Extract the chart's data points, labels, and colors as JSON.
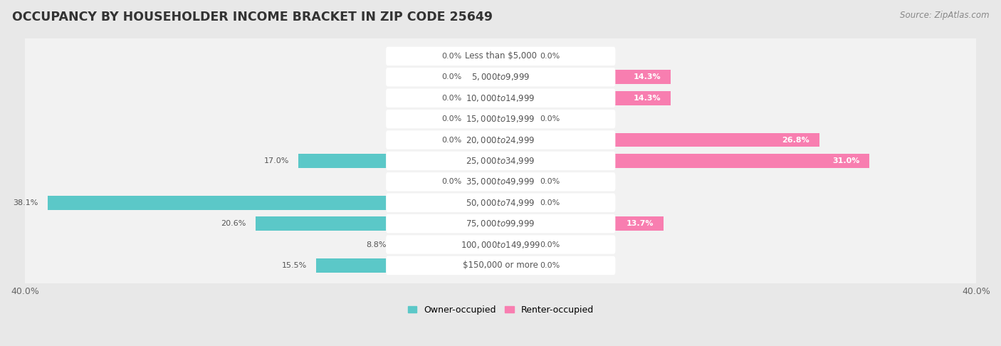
{
  "title": "OCCUPANCY BY HOUSEHOLDER INCOME BRACKET IN ZIP CODE 25649",
  "source": "Source: ZipAtlas.com",
  "categories": [
    "Less than $5,000",
    "$5,000 to $9,999",
    "$10,000 to $14,999",
    "$15,000 to $19,999",
    "$20,000 to $24,999",
    "$25,000 to $34,999",
    "$35,000 to $49,999",
    "$50,000 to $74,999",
    "$75,000 to $99,999",
    "$100,000 to $149,999",
    "$150,000 or more"
  ],
  "owner_values": [
    0.0,
    0.0,
    0.0,
    0.0,
    0.0,
    17.0,
    0.0,
    38.1,
    20.6,
    8.8,
    15.5
  ],
  "renter_values": [
    0.0,
    14.3,
    14.3,
    0.0,
    26.8,
    31.0,
    0.0,
    0.0,
    13.7,
    0.0,
    0.0
  ],
  "owner_color": "#5BC8C8",
  "renter_color": "#F87EB0",
  "renter_color_light": "#FBCFE0",
  "background_color": "#e8e8e8",
  "row_bg_color": "#f2f2f2",
  "label_pill_color": "#ffffff",
  "xlim": 40.0,
  "title_fontsize": 12.5,
  "source_fontsize": 8.5,
  "label_fontsize": 8.0,
  "category_fontsize": 8.5,
  "legend_fontsize": 9,
  "axis_label_fontsize": 9,
  "zero_stub": 2.5
}
